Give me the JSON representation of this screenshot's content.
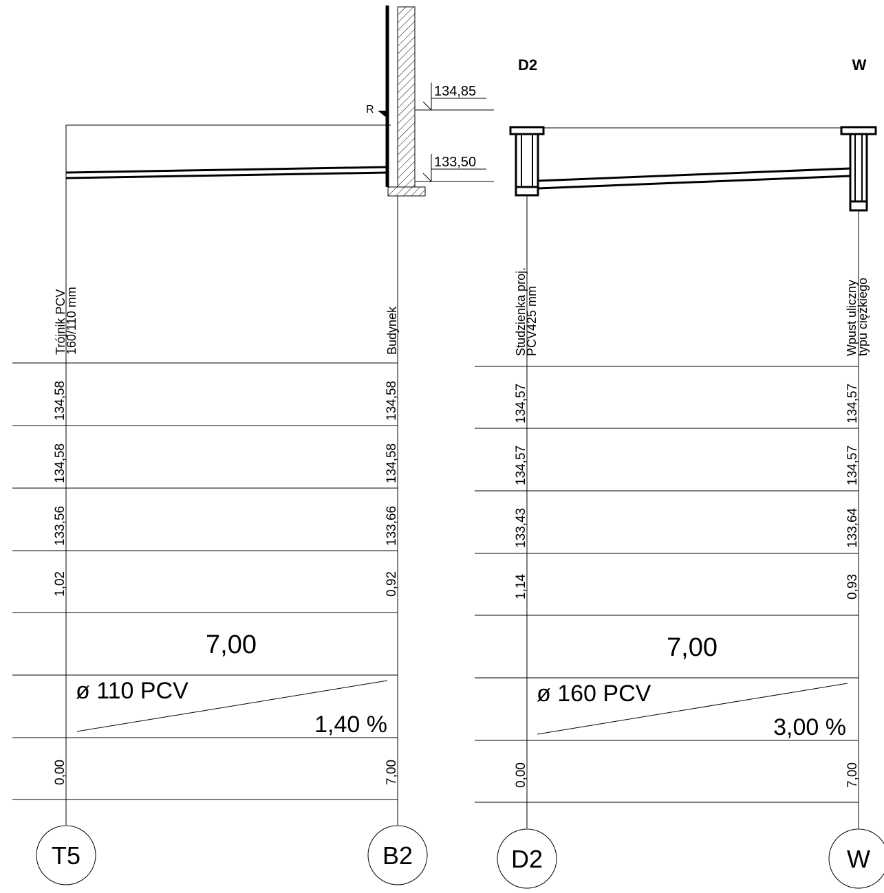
{
  "left_profile": {
    "levels": {
      "top": "134,85",
      "bottom": "133,50"
    },
    "riser_label": "R",
    "start_node": {
      "line1": "Trójnik PCV",
      "line2": "160/110 mm"
    },
    "end_node": {
      "line1": "Budynek"
    },
    "rows": [
      {
        "start": "134,58",
        "end": "134,58"
      },
      {
        "start": "134,58",
        "end": "134,58"
      },
      {
        "start": "133,56",
        "end": "133,66"
      },
      {
        "start": "1,02",
        "end": "0,92"
      }
    ],
    "length": "7,00",
    "pipe": "ø 110 PCV",
    "slope": "1,40 %",
    "chainage": {
      "start": "0,00",
      "end": "7,00"
    },
    "circles": {
      "start": "T5",
      "end": "B2"
    }
  },
  "right_profile": {
    "header": {
      "left": "D2",
      "right": "W"
    },
    "start_node": {
      "line1": "Studzienka proj.",
      "line2": "PCV425 mm"
    },
    "end_node": {
      "line1": "Wpust uliczny",
      "line2": "typu ciężkiego"
    },
    "rows": [
      {
        "start": "134,57",
        "end": "134,57"
      },
      {
        "start": "134,57",
        "end": "134,57"
      },
      {
        "start": "133,43",
        "end": "133,64"
      },
      {
        "start": "1,14",
        "end": "0,93"
      }
    ],
    "length": "7,00",
    "pipe": "ø 160 PCV",
    "slope": "3,00 %",
    "chainage": {
      "start": "0,00",
      "end": "7,00"
    },
    "circles": {
      "start": "D2",
      "end": "W"
    }
  }
}
